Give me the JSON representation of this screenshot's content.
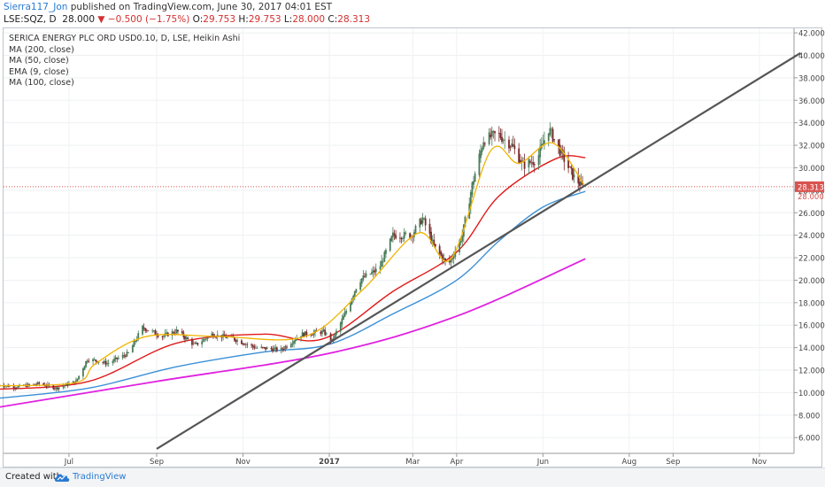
{
  "header": {
    "author": "Sierra117_Jon",
    "published": "published on TradingView.com, June 30, 2017 04:01 EST",
    "symbol": "LSE:SQZ, D",
    "last": "28.000",
    "change": "▼ −0.500 (−1.75%)",
    "o_label": "O:",
    "o_value": "29.753",
    "h_label": "H:",
    "h_value": "29.753",
    "l_label": "L:",
    "l_value": "28.000",
    "c_label": "C:",
    "c_value": "28.313"
  },
  "legend": [
    "SERICA ENERGY PLC ORD USD0.10, D, LSE, Heikin Ashi",
    "MA (200, close)",
    "MA (50, close)",
    "EMA (9, close)",
    "MA (100, close)"
  ],
  "footer": {
    "created": "Created with",
    "brand": "TradingView"
  },
  "colors": {
    "candle_up": "#4a7c59",
    "candle_down": "#7a2a2a",
    "ma200": "#e020e0",
    "ma50": "#e01a1a",
    "ema9": "#f0b400",
    "ma100": "#3a8fd6",
    "trendline": "#555555",
    "price_tag": "#d9534f"
  },
  "chart_data": {
    "type": "candlestick",
    "x_tick_labels": [
      "Jul",
      "Sep",
      "Nov",
      "2017",
      "Mar",
      "Apr",
      "Jun",
      "Aug",
      "Sep",
      "Nov"
    ],
    "y_tick_labels": [
      "6.000",
      "8.000",
      "10.000",
      "12.000",
      "14.000",
      "16.000",
      "18.000",
      "20.000",
      "22.000",
      "24.000",
      "26.000",
      "28.000",
      "30.000",
      "32.000",
      "34.000",
      "36.000",
      "38.000",
      "40.000",
      "42.000"
    ],
    "y_ticks": [
      6,
      8,
      10,
      12,
      14,
      16,
      18,
      20,
      22,
      24,
      26,
      28,
      30,
      32,
      34,
      36,
      38,
      40,
      42
    ],
    "ylim": [
      4.6,
      42.4
    ],
    "last_price_label": "28.313",
    "last_price": 28.313,
    "close_label": "28.000",
    "close": 28.0,
    "price_series": [
      {
        "date": "2016-05-12",
        "v": 10.7
      },
      {
        "date": "2016-05-25",
        "v": 10.5
      },
      {
        "date": "2016-06-10",
        "v": 10.8
      },
      {
        "date": "2016-06-22",
        "v": 10.4
      },
      {
        "date": "2016-07-06",
        "v": 11.0
      },
      {
        "date": "2016-07-14",
        "v": 13.0
      },
      {
        "date": "2016-07-28",
        "v": 12.6
      },
      {
        "date": "2016-08-12",
        "v": 13.5
      },
      {
        "date": "2016-08-22",
        "v": 15.8
      },
      {
        "date": "2016-09-05",
        "v": 15.0
      },
      {
        "date": "2016-09-15",
        "v": 15.5
      },
      {
        "date": "2016-09-28",
        "v": 14.2
      },
      {
        "date": "2016-10-10",
        "v": 15.2
      },
      {
        "date": "2016-10-25",
        "v": 14.8
      },
      {
        "date": "2016-11-10",
        "v": 14.0
      },
      {
        "date": "2016-11-28",
        "v": 13.8
      },
      {
        "date": "2016-12-12",
        "v": 15.2
      },
      {
        "date": "2016-12-28",
        "v": 15.4
      },
      {
        "date": "2017-01-03",
        "v": 14.6
      },
      {
        "date": "2017-01-12",
        "v": 17.0
      },
      {
        "date": "2017-01-22",
        "v": 20.0
      },
      {
        "date": "2017-02-05",
        "v": 21.0
      },
      {
        "date": "2017-02-15",
        "v": 24.0
      },
      {
        "date": "2017-02-28",
        "v": 24.0
      },
      {
        "date": "2017-03-08",
        "v": 25.5
      },
      {
        "date": "2017-03-16",
        "v": 23.0
      },
      {
        "date": "2017-03-26",
        "v": 21.3
      },
      {
        "date": "2017-04-05",
        "v": 24.0
      },
      {
        "date": "2017-04-12",
        "v": 28.5
      },
      {
        "date": "2017-04-20",
        "v": 32.5
      },
      {
        "date": "2017-04-30",
        "v": 33.0
      },
      {
        "date": "2017-05-10",
        "v": 32.0
      },
      {
        "date": "2017-05-18",
        "v": 30.2
      },
      {
        "date": "2017-05-28",
        "v": 30.8
      },
      {
        "date": "2017-06-05",
        "v": 33.5
      },
      {
        "date": "2017-06-15",
        "v": 31.0
      },
      {
        "date": "2017-06-22",
        "v": 29.3
      },
      {
        "date": "2017-06-29",
        "v": 28.3
      }
    ],
    "series": [
      {
        "name": "MA (200, close)",
        "points": [
          {
            "date": "2016-05-12",
            "v": 8.7
          },
          {
            "date": "2016-09-01",
            "v": 11.0
          },
          {
            "date": "2017-01-01",
            "v": 13.5
          },
          {
            "date": "2017-04-01",
            "v": 16.8
          },
          {
            "date": "2017-07-01",
            "v": 21.9
          }
        ]
      },
      {
        "name": "MA (50, close)",
        "points": [
          {
            "date": "2016-05-12",
            "v": 10.3
          },
          {
            "date": "2016-07-15",
            "v": 11.0
          },
          {
            "date": "2016-09-15",
            "v": 14.4
          },
          {
            "date": "2016-11-15",
            "v": 15.2
          },
          {
            "date": "2016-12-28",
            "v": 14.8
          },
          {
            "date": "2017-02-15",
            "v": 19.0
          },
          {
            "date": "2017-04-01",
            "v": 22.5
          },
          {
            "date": "2017-05-01",
            "v": 27.5
          },
          {
            "date": "2017-06-10",
            "v": 30.8
          },
          {
            "date": "2017-07-01",
            "v": 30.9
          }
        ]
      },
      {
        "name": "EMA (9, close)",
        "points": [
          {
            "date": "2016-05-12",
            "v": 10.6
          },
          {
            "date": "2016-07-06",
            "v": 10.9
          },
          {
            "date": "2016-07-20",
            "v": 12.6
          },
          {
            "date": "2016-08-25",
            "v": 15.0
          },
          {
            "date": "2016-10-15",
            "v": 15.0
          },
          {
            "date": "2016-12-15",
            "v": 15.0
          },
          {
            "date": "2017-01-25",
            "v": 19.2
          },
          {
            "date": "2017-03-05",
            "v": 24.2
          },
          {
            "date": "2017-03-28",
            "v": 21.9
          },
          {
            "date": "2017-04-25",
            "v": 31.5
          },
          {
            "date": "2017-05-15",
            "v": 30.4
          },
          {
            "date": "2017-06-08",
            "v": 32.2
          },
          {
            "date": "2017-06-30",
            "v": 28.5
          }
        ]
      },
      {
        "name": "MA (100, close)",
        "points": [
          {
            "date": "2016-05-12",
            "v": 9.5
          },
          {
            "date": "2016-07-15",
            "v": 10.4
          },
          {
            "date": "2016-09-15",
            "v": 12.3
          },
          {
            "date": "2016-11-15",
            "v": 13.6
          },
          {
            "date": "2017-01-01",
            "v": 14.3
          },
          {
            "date": "2017-02-15",
            "v": 17.0
          },
          {
            "date": "2017-04-01",
            "v": 20.0
          },
          {
            "date": "2017-05-01",
            "v": 23.5
          },
          {
            "date": "2017-06-01",
            "v": 26.5
          },
          {
            "date": "2017-07-01",
            "v": 27.9
          }
        ]
      },
      {
        "name": "Trendline",
        "points": [
          {
            "date": "2016-09-01",
            "v": 5.0
          },
          {
            "date": "2017-11-30",
            "v": 40.2
          }
        ]
      }
    ]
  }
}
